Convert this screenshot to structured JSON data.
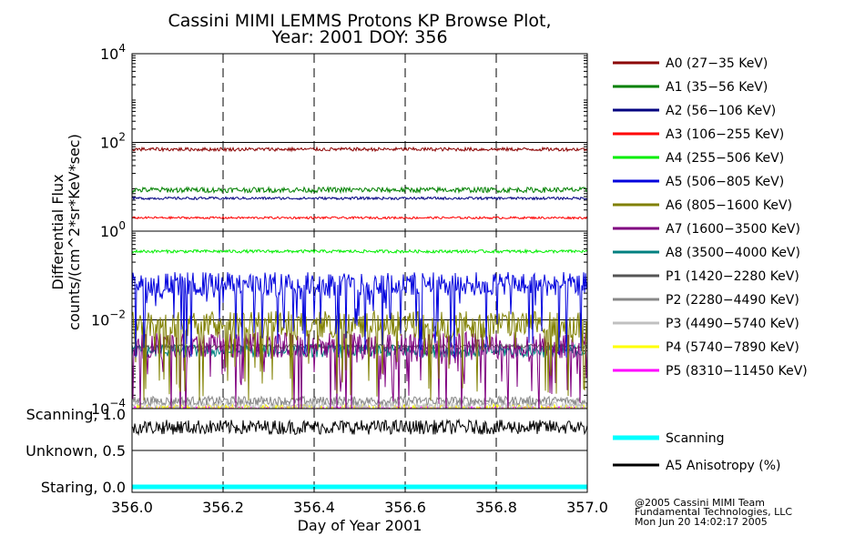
{
  "chart_data": {
    "type": "line",
    "title_line1": "Cassini MIMI LEMMS Protons KP Browse Plot,",
    "title_line2": "Year: 2001 DOY: 356",
    "xlabel": "Day of Year 2001",
    "xlim": [
      356.0,
      357.0
    ],
    "xticks": [
      {
        "v": 356.0,
        "label": "356.0"
      },
      {
        "v": 356.2,
        "label": "356.2"
      },
      {
        "v": 356.4,
        "label": "356.4"
      },
      {
        "v": 356.6,
        "label": "356.6"
      },
      {
        "v": 356.8,
        "label": "356.8"
      },
      {
        "v": 357.0,
        "label": "357.0"
      }
    ],
    "flux_panel": {
      "ylabel_line1": "Differential Flux",
      "ylabel_line2": "counts/(cm^2*sr*KeV*sec)",
      "yscale": "log",
      "ylim": [
        0.0001,
        10000
      ],
      "yticks": [
        {
          "v": 10000,
          "base": "10",
          "exp": "4"
        },
        {
          "v": 100,
          "base": "10",
          "exp": "2"
        },
        {
          "v": 1,
          "base": "10",
          "exp": "0"
        },
        {
          "v": 0.01,
          "base": "10",
          "exp": "−2"
        },
        {
          "v": 0.0001,
          "base": "10",
          "exp": "−4"
        }
      ],
      "series": [
        {
          "name": "A0 (27−35 KeV)",
          "color": "#8b0000",
          "level": 70,
          "noise": 0.08
        },
        {
          "name": "A1 (35−56 KeV)",
          "color": "#008000",
          "level": 8.5,
          "noise": 0.12
        },
        {
          "name": "A2 (56−106 KeV)",
          "color": "#000080",
          "level": 5.5,
          "noise": 0.06
        },
        {
          "name": "A3 (106−255 KeV)",
          "color": "#ff0000",
          "level": 2.0,
          "noise": 0.05
        },
        {
          "name": "A4 (255−506 KeV)",
          "color": "#00ee00",
          "level": 0.35,
          "noise": 0.07
        },
        {
          "name": "A5 (506−805 KeV)",
          "color": "#0000dd",
          "level": 0.05,
          "noise": 0.45
        },
        {
          "name": "A6 (805−1600 KeV)",
          "color": "#808000",
          "level": 0.006,
          "noise": 0.5
        },
        {
          "name": "A7 (1600−3500 KeV)",
          "color": "#800080",
          "level": 0.002,
          "noise": 0.5
        },
        {
          "name": "A8 (3500−4000 KeV)",
          "color": "#008080",
          "level": 0.002,
          "noise": 0.3
        },
        {
          "name": "P1 (1420−2280 KeV)",
          "color": "#555555",
          "level": 0.0025,
          "noise": 0.1
        },
        {
          "name": "P2 (2280−4490 KeV)",
          "color": "#888888",
          "level": 0.00015,
          "noise": 0.2
        },
        {
          "name": "P3 (4490−5740 KeV)",
          "color": "#c0c0c0",
          "level": 0.00012,
          "noise": 0.2
        },
        {
          "name": "P4 (5740−7890 KeV)",
          "color": "#ffff00",
          "level": 0.0001,
          "noise": 0.2
        },
        {
          "name": "P5 (8310−11450 KeV)",
          "color": "#ff00ff",
          "level": 0.0001,
          "noise": 0.1
        }
      ]
    },
    "mode_panel": {
      "ylabels": [
        {
          "v": 1.0,
          "label": "Scanning, 1.0"
        },
        {
          "v": 0.5,
          "label": "Unknown, 0.5"
        },
        {
          "v": 0.0,
          "label": "Staring, 0.0"
        }
      ],
      "ylim": [
        0.0,
        1.0
      ],
      "series": [
        {
          "name": "Scanning",
          "color": "#00ffff",
          "level": 0.0
        },
        {
          "name": "A5 Anisotropy (%)",
          "color": "#000000",
          "level": 0.82
        }
      ]
    },
    "footer": [
      "@2005 Cassini MIMI Team",
      "Fundamental Technologies, LLC",
      "Mon Jun 20 14:02:17 2005"
    ]
  }
}
